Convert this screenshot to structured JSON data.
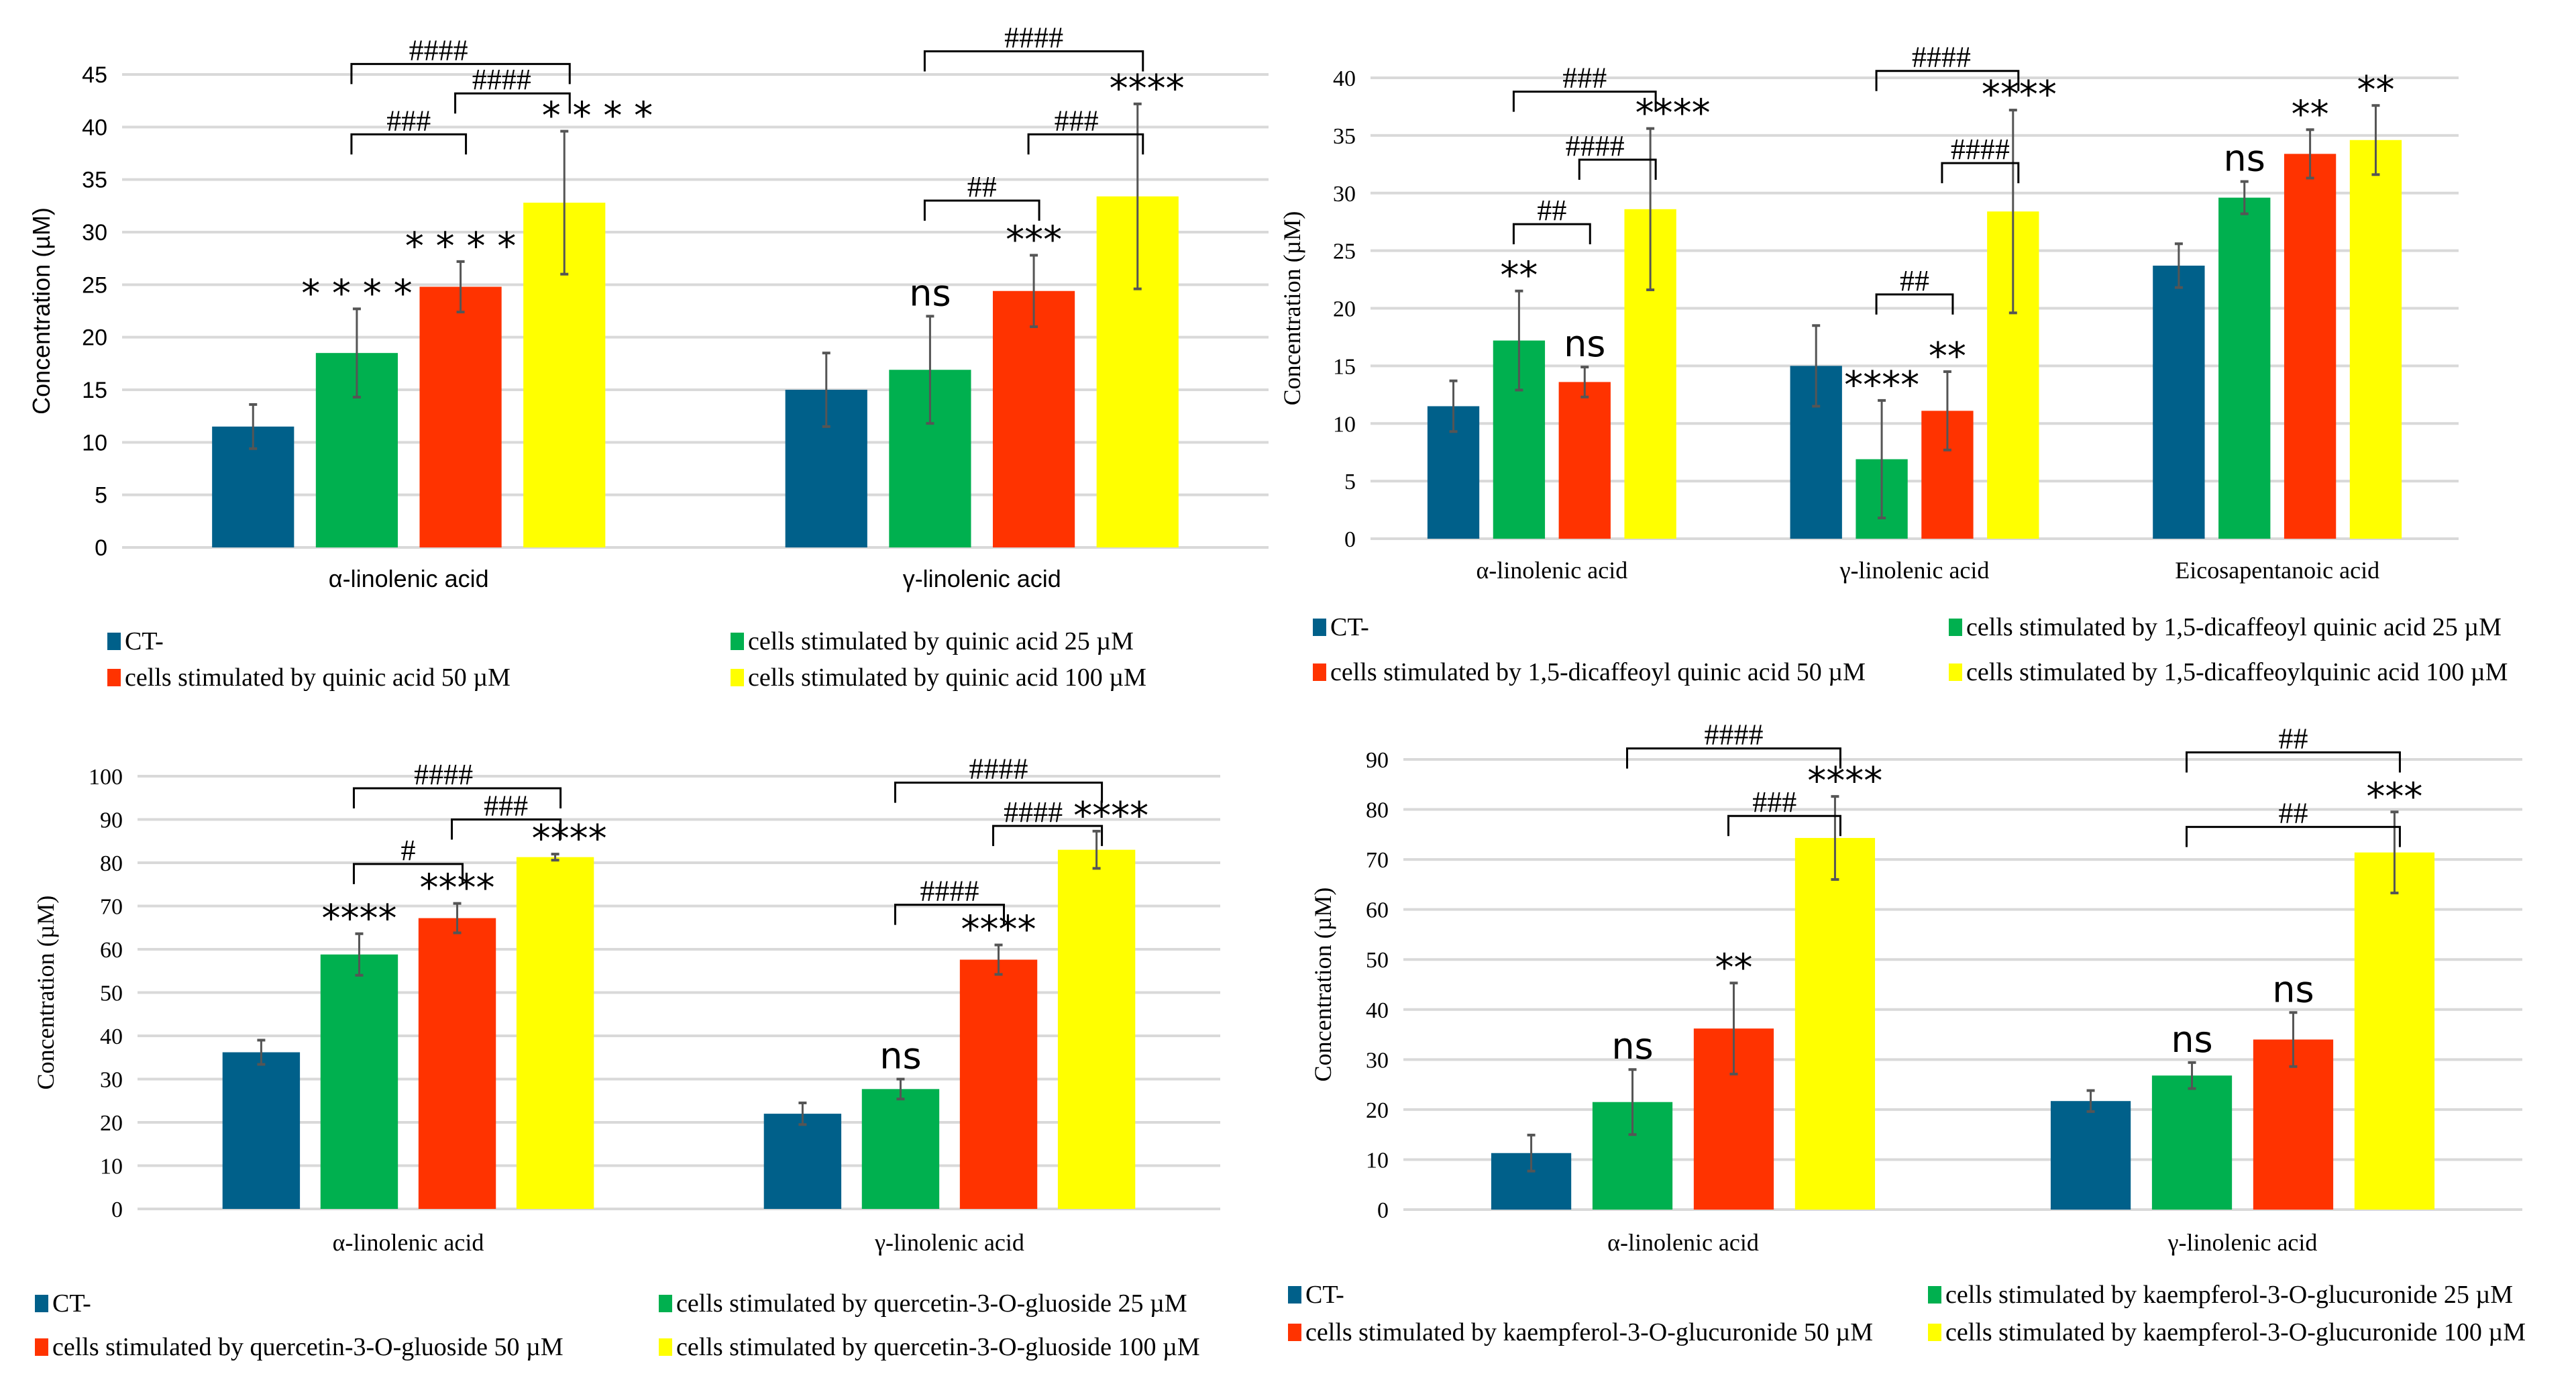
{
  "colors": {
    "ct": "#00608a",
    "c25": "#00b04f",
    "c50": "#ff3300",
    "c100": "#ffff00",
    "grid": "#d9d9d9",
    "error": "#555555"
  },
  "chart_data": [
    {
      "type": "bar",
      "ylabel": "Concentration (µM)",
      "ylim": [
        0,
        45
      ],
      "ytick_step": 5,
      "grid": true,
      "legend_placement": "bottom",
      "categories": [
        "α-linolenic acid",
        "γ-linolenic acid"
      ],
      "series": [
        {
          "name": "CT-",
          "values": [
            11.5,
            15.0
          ],
          "errors": [
            2.1,
            3.5
          ]
        },
        {
          "name": "cells stimulated by quinic acid 25 µM",
          "values": [
            18.5,
            16.9
          ],
          "errors": [
            4.2,
            5.1
          ]
        },
        {
          "name": "cells stimulated by  quinic acid 50 µM",
          "values": [
            24.8,
            24.4
          ],
          "errors": [
            2.4,
            3.4
          ]
        },
        {
          "name": "cells stimulated by  quinic acid 100 µM",
          "values": [
            32.8,
            33.4
          ],
          "errors": [
            6.8,
            8.8
          ]
        }
      ],
      "significance": [
        [
          "",
          "* * * *",
          "* * * *",
          "* * * *"
        ],
        [
          "",
          "ns",
          "***",
          "****"
        ]
      ],
      "brackets": [
        {
          "category": 0,
          "from": 1,
          "to": 2,
          "y": 39.3,
          "label": "###"
        },
        {
          "category": 0,
          "from": 2,
          "to": 3,
          "y": 43.2,
          "label": "####"
        },
        {
          "category": 0,
          "from": 1,
          "to": 3,
          "y": 46.0,
          "label": "####"
        },
        {
          "category": 1,
          "from": 1,
          "to": 2,
          "y": 33.0,
          "label": "##"
        },
        {
          "category": 1,
          "from": 2,
          "to": 3,
          "y": 39.3,
          "label": "###"
        },
        {
          "category": 1,
          "from": 1,
          "to": 3,
          "y": 47.2,
          "label": "####"
        }
      ]
    },
    {
      "type": "bar",
      "ylabel": "Concentration (µM)",
      "ylim": [
        0,
        40
      ],
      "ytick_step": 5,
      "grid": true,
      "legend_placement": "bottom",
      "categories": [
        "α-linolenic acid",
        "γ-linolenic acid",
        "Eicosapentanoic acid"
      ],
      "series": [
        {
          "name": "CT-",
          "values": [
            11.5,
            15.0,
            23.7
          ],
          "errors": [
            2.2,
            3.5,
            1.9
          ]
        },
        {
          "name": "cells stimulated by 1,5-dicaffeoyl quinic acid 25 µM",
          "values": [
            17.2,
            6.9,
            29.6
          ],
          "errors": [
            4.3,
            5.1,
            1.4
          ]
        },
        {
          "name": "cells stimulated by  1,5-dicaffeoyl quinic acid 50 µM",
          "values": [
            13.6,
            11.1,
            33.4
          ],
          "errors": [
            1.3,
            3.4,
            2.1
          ]
        },
        {
          "name": "cells stimulated by  1,5-dicaffeoylquinic acid 100 µM",
          "values": [
            28.6,
            28.4,
            34.6
          ],
          "errors": [
            7.0,
            8.8,
            3.0
          ]
        }
      ],
      "significance": [
        [
          "",
          "**",
          "ns",
          "****"
        ],
        [
          "",
          "****",
          "**",
          "****"
        ],
        [
          "",
          "ns",
          "**",
          "**"
        ]
      ],
      "brackets": [
        {
          "category": 0,
          "from": 1,
          "to": 2,
          "y": 27.3,
          "label": "##"
        },
        {
          "category": 0,
          "from": 2,
          "to": 3,
          "y": 32.9,
          "label": "####"
        },
        {
          "category": 0,
          "from": 1,
          "to": 3,
          "y": 38.8,
          "label": "###"
        },
        {
          "category": 1,
          "from": 1,
          "to": 2,
          "y": 21.2,
          "label": "##"
        },
        {
          "category": 1,
          "from": 2,
          "to": 3,
          "y": 32.6,
          "label": "####"
        },
        {
          "category": 1,
          "from": 1,
          "to": 3,
          "y": 40.6,
          "label": "####"
        }
      ]
    },
    {
      "type": "bar",
      "ylabel": "Concentration (µM)",
      "ylim": [
        0,
        100
      ],
      "ytick_step": 10,
      "grid": true,
      "legend_placement": "bottom",
      "categories": [
        "α-linolenic acid",
        "γ-linolenic acid"
      ],
      "series": [
        {
          "name": "CT-",
          "values": [
            36.2,
            22.0
          ],
          "errors": [
            2.8,
            2.5
          ]
        },
        {
          "name": "cells stimulated by quercetin-3-O-gluoside 25 µM",
          "values": [
            58.8,
            27.7
          ],
          "errors": [
            4.8,
            2.3
          ]
        },
        {
          "name": "cells stimulated by quercetin-3-O-gluoside 50 µM",
          "values": [
            67.2,
            57.6
          ],
          "errors": [
            3.4,
            3.4
          ]
        },
        {
          "name": "cells stimulated by quercetin-3-O-gluoside 100 µM",
          "values": [
            81.3,
            83.0
          ],
          "errors": [
            0.7,
            4.3
          ]
        }
      ],
      "significance": [
        [
          "",
          "****",
          "****",
          "****"
        ],
        [
          "",
          "ns",
          "****",
          "****"
        ]
      ],
      "brackets": [
        {
          "category": 0,
          "from": 1,
          "to": 2,
          "y": 79.7,
          "label": "#"
        },
        {
          "category": 0,
          "from": 2,
          "to": 3,
          "y": 90.0,
          "label": "###"
        },
        {
          "category": 0,
          "from": 1,
          "to": 3,
          "y": 97.2,
          "label": "####"
        },
        {
          "category": 1,
          "from": 1,
          "to": 2,
          "y": 70.3,
          "label": "####"
        },
        {
          "category": 1,
          "from": 2,
          "to": 3,
          "y": 88.5,
          "label": "####"
        },
        {
          "category": 1,
          "from": 1,
          "to": 3,
          "y": 98.5,
          "label": "####"
        }
      ]
    },
    {
      "type": "bar",
      "ylabel": "Concentration (µM)",
      "ylim": [
        0,
        90
      ],
      "ytick_step": 10,
      "grid": true,
      "legend_placement": "bottom",
      "categories": [
        "α-linolenic acid",
        "γ-linolenic acid"
      ],
      "series": [
        {
          "name": "CT-",
          "values": [
            11.3,
            21.7
          ],
          "errors": [
            3.6,
            2.1
          ]
        },
        {
          "name": "cells stimulated by kaempferol-3-O-glucuronide 25 µM",
          "values": [
            21.5,
            26.8
          ],
          "errors": [
            6.5,
            2.6
          ]
        },
        {
          "name": "cells stimulated by kaempferol-3-O-glucuronide 50 µM",
          "values": [
            36.2,
            34.0
          ],
          "errors": [
            9.1,
            5.4
          ]
        },
        {
          "name": "cells stimulated by kaempferol-3-O-glucuronide 100 µM",
          "values": [
            74.3,
            71.4
          ],
          "errors": [
            8.3,
            8.1
          ]
        }
      ],
      "significance": [
        [
          "",
          "ns",
          "**",
          "****"
        ],
        [
          "",
          "ns",
          "ns",
          "***"
        ]
      ],
      "brackets": [
        {
          "category": 0,
          "from": 2,
          "to": 3,
          "y": 78.7,
          "label": "###"
        },
        {
          "category": 0,
          "from": 1,
          "to": 3,
          "y": 92.2,
          "label": "####"
        },
        {
          "category": 1,
          "from": 1,
          "to": 3,
          "y": 76.5,
          "label": "##"
        },
        {
          "category": 1,
          "from": 1,
          "to": 3,
          "y": 91.4,
          "label": "##"
        }
      ]
    }
  ]
}
